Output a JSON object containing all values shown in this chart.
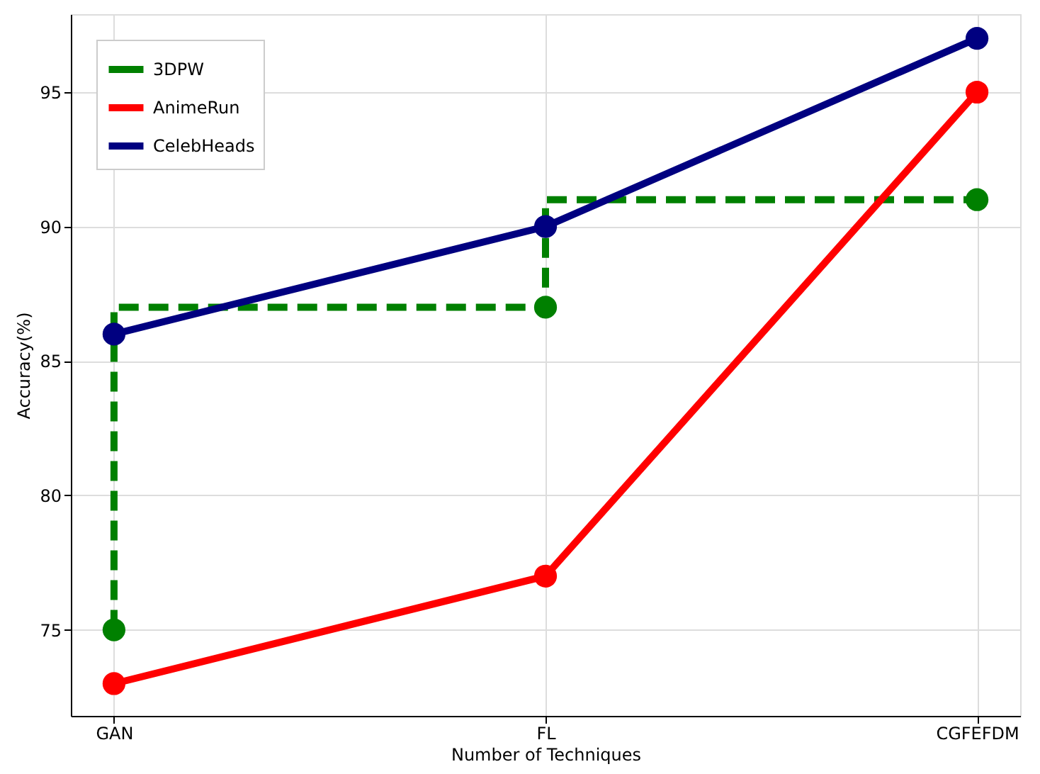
{
  "chart_data": {
    "type": "line",
    "xlabel": "Number of Techniques",
    "ylabel": "Accuracy(%)",
    "categories": [
      "GAN",
      "FL",
      "CGFEFDM"
    ],
    "series": [
      {
        "name": "3DPW",
        "type": "step",
        "color": "#008000",
        "line_style": "dashed",
        "values": [
          75,
          87,
          91
        ]
      },
      {
        "name": "AnimeRun",
        "color": "#ff0000",
        "line_style": "solid",
        "values": [
          73,
          77,
          95
        ]
      },
      {
        "name": "CelebHeads",
        "color": "#000080",
        "line_style": "solid",
        "values": [
          86,
          90,
          97
        ]
      }
    ],
    "ylim": [
      71.8,
      97.9
    ],
    "yticks": [
      75,
      80,
      85,
      90,
      95
    ],
    "grid": true,
    "legend": "top left",
    "marker": "circle"
  }
}
